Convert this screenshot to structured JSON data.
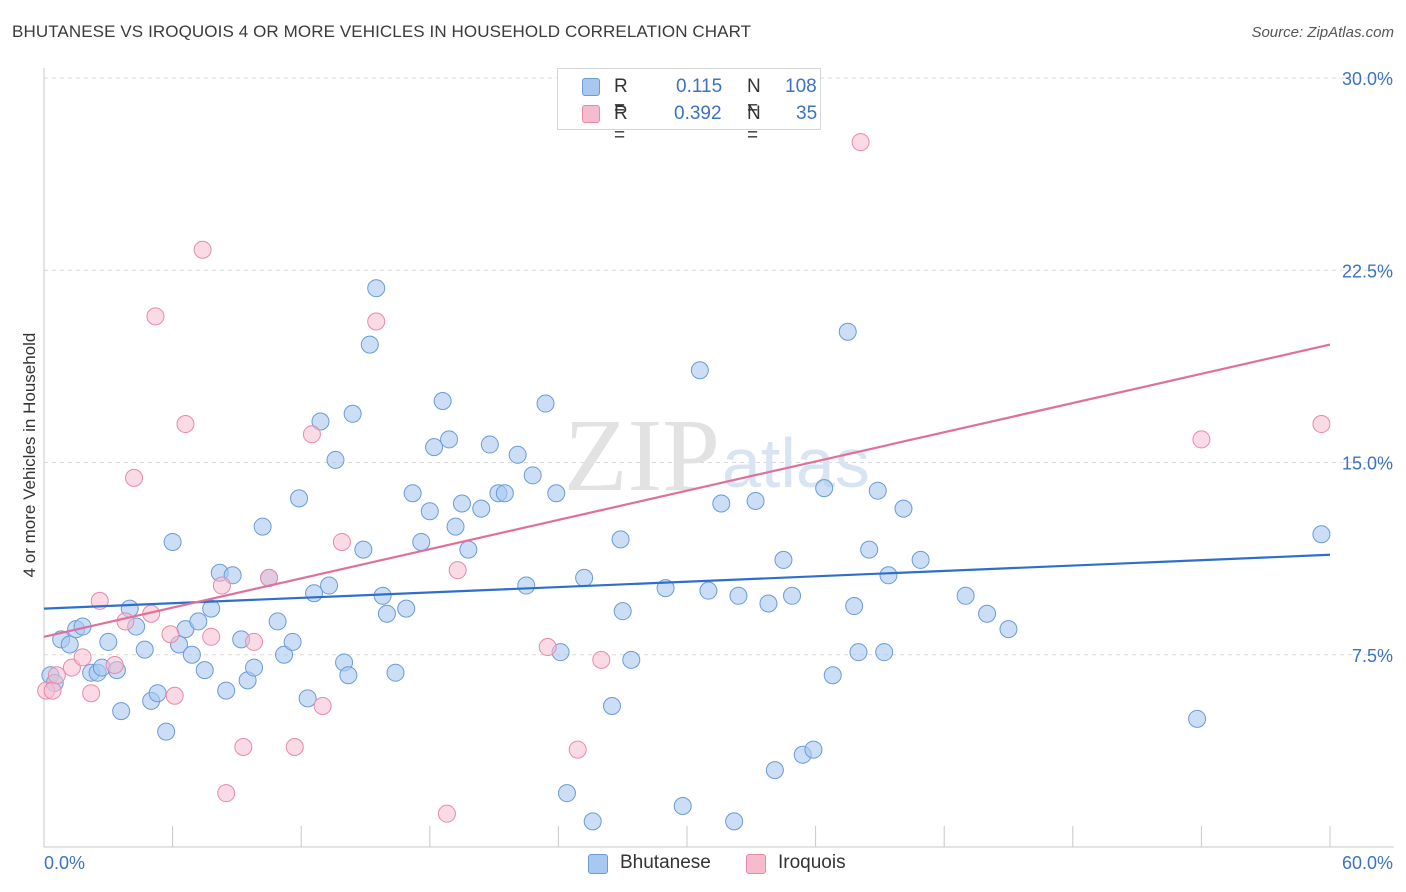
{
  "header": {
    "title": "BHUTANESE VS IROQUOIS 4 OR MORE VEHICLES IN HOUSEHOLD CORRELATION CHART",
    "source": "Source: ZipAtlas.com"
  },
  "watermark": {
    "zip": "ZIP",
    "atlas": "atlas"
  },
  "legend": {
    "r_label": "R =",
    "n_label": "N =",
    "rows": [
      {
        "series": "Bhutanese",
        "r": "0.115",
        "n": "108"
      },
      {
        "series": "Iroquois",
        "r": "0.392",
        "n": "35"
      }
    ]
  },
  "colors": {
    "blue_fill": "#a8c8f0",
    "blue_stroke": "#6a9bd8",
    "blue_line": "#2f6fcc",
    "pink_fill": "#f6bccd",
    "pink_stroke": "#e88aa8",
    "pink_line": "#e0709a",
    "tick_label": "#3b72c4",
    "grid": "#d8d8d8"
  },
  "chart_data": {
    "type": "scatter",
    "title": "BHUTANESE VS IROQUOIS 4 OR MORE VEHICLES IN HOUSEHOLD CORRELATION CHART",
    "xlabel": "",
    "ylabel": "4 or more Vehicles in Household",
    "xlim": [
      0,
      60
    ],
    "ylim": [
      0,
      30
    ],
    "x_tick_labels": [
      "0.0%",
      "60.0%"
    ],
    "y_ticks": [
      7.5,
      15.0,
      22.5,
      30.0
    ],
    "y_tick_labels": [
      "7.5%",
      "15.0%",
      "22.5%",
      "30.0%"
    ],
    "grid": "horizontal dashed",
    "legend_position": "top-center and bottom-center",
    "series": [
      {
        "name": "Bhutanese",
        "color": "#a8c8f0",
        "trend": {
          "x": [
            0,
            60
          ],
          "y": [
            9.3,
            11.4
          ]
        },
        "points": [
          [
            0.3,
            6.7
          ],
          [
            0.5,
            6.4
          ],
          [
            0.8,
            8.1
          ],
          [
            1.2,
            7.9
          ],
          [
            1.5,
            8.5
          ],
          [
            1.8,
            8.6
          ],
          [
            2.2,
            6.8
          ],
          [
            2.5,
            6.8
          ],
          [
            2.7,
            7.0
          ],
          [
            3.0,
            8.0
          ],
          [
            3.4,
            6.9
          ],
          [
            3.6,
            5.3
          ],
          [
            4.0,
            9.3
          ],
          [
            4.3,
            8.6
          ],
          [
            4.7,
            7.7
          ],
          [
            5.0,
            5.7
          ],
          [
            5.3,
            6.0
          ],
          [
            5.7,
            4.5
          ],
          [
            6.0,
            11.9
          ],
          [
            6.3,
            7.9
          ],
          [
            6.6,
            8.5
          ],
          [
            6.9,
            7.5
          ],
          [
            7.2,
            8.8
          ],
          [
            7.5,
            6.9
          ],
          [
            7.8,
            9.3
          ],
          [
            8.2,
            10.7
          ],
          [
            8.5,
            6.1
          ],
          [
            8.8,
            10.6
          ],
          [
            9.2,
            8.1
          ],
          [
            9.5,
            6.5
          ],
          [
            9.8,
            7.0
          ],
          [
            10.2,
            12.5
          ],
          [
            10.5,
            10.5
          ],
          [
            10.9,
            8.8
          ],
          [
            11.2,
            7.5
          ],
          [
            11.6,
            8.0
          ],
          [
            11.9,
            13.6
          ],
          [
            12.3,
            5.8
          ],
          [
            12.6,
            9.9
          ],
          [
            12.9,
            16.6
          ],
          [
            13.3,
            10.2
          ],
          [
            13.6,
            15.1
          ],
          [
            14.0,
            7.2
          ],
          [
            14.2,
            6.7
          ],
          [
            14.4,
            16.9
          ],
          [
            14.9,
            11.6
          ],
          [
            15.2,
            19.6
          ],
          [
            15.5,
            21.8
          ],
          [
            15.8,
            9.8
          ],
          [
            16.0,
            9.1
          ],
          [
            16.4,
            6.8
          ],
          [
            16.9,
            9.3
          ],
          [
            17.2,
            13.8
          ],
          [
            17.6,
            11.9
          ],
          [
            18.0,
            13.1
          ],
          [
            18.2,
            15.6
          ],
          [
            18.6,
            17.4
          ],
          [
            18.9,
            15.9
          ],
          [
            19.2,
            12.5
          ],
          [
            19.5,
            13.4
          ],
          [
            19.8,
            11.6
          ],
          [
            20.4,
            13.2
          ],
          [
            20.8,
            15.7
          ],
          [
            21.2,
            13.8
          ],
          [
            21.5,
            13.8
          ],
          [
            22.1,
            15.3
          ],
          [
            22.5,
            10.2
          ],
          [
            22.8,
            14.5
          ],
          [
            23.4,
            17.3
          ],
          [
            23.9,
            13.8
          ],
          [
            24.1,
            7.6
          ],
          [
            24.4,
            2.1
          ],
          [
            25.2,
            10.5
          ],
          [
            25.6,
            1.0
          ],
          [
            26.5,
            5.5
          ],
          [
            26.9,
            12.0
          ],
          [
            27.0,
            9.2
          ],
          [
            27.4,
            7.3
          ],
          [
            29.0,
            10.1
          ],
          [
            29.8,
            1.6
          ],
          [
            30.6,
            18.6
          ],
          [
            31.0,
            10.0
          ],
          [
            31.6,
            13.4
          ],
          [
            32.4,
            9.8
          ],
          [
            32.2,
            1.0
          ],
          [
            33.2,
            13.5
          ],
          [
            33.8,
            9.5
          ],
          [
            34.1,
            3.0
          ],
          [
            34.5,
            11.2
          ],
          [
            34.9,
            9.8
          ],
          [
            35.4,
            3.6
          ],
          [
            35.9,
            3.8
          ],
          [
            36.4,
            14.0
          ],
          [
            36.8,
            6.7
          ],
          [
            37.5,
            20.1
          ],
          [
            37.8,
            9.4
          ],
          [
            38.0,
            7.6
          ],
          [
            38.5,
            11.6
          ],
          [
            38.9,
            13.9
          ],
          [
            39.2,
            7.6
          ],
          [
            39.4,
            10.6
          ],
          [
            40.1,
            13.2
          ],
          [
            40.9,
            11.2
          ],
          [
            43.0,
            9.8
          ],
          [
            44.0,
            9.1
          ],
          [
            45.0,
            8.5
          ],
          [
            53.8,
            5.0
          ],
          [
            59.6,
            12.2
          ]
        ]
      },
      {
        "name": "Iroquois",
        "color": "#f6bccd",
        "trend": {
          "x": [
            0,
            60
          ],
          "y": [
            8.2,
            19.6
          ]
        },
        "points": [
          [
            0.1,
            6.1
          ],
          [
            0.4,
            6.1
          ],
          [
            0.6,
            6.7
          ],
          [
            1.3,
            7.0
          ],
          [
            1.8,
            7.4
          ],
          [
            2.2,
            6.0
          ],
          [
            2.6,
            9.6
          ],
          [
            3.3,
            7.1
          ],
          [
            3.8,
            8.8
          ],
          [
            4.2,
            14.4
          ],
          [
            5.0,
            9.1
          ],
          [
            5.2,
            20.7
          ],
          [
            5.9,
            8.3
          ],
          [
            6.1,
            5.9
          ],
          [
            6.6,
            16.5
          ],
          [
            7.4,
            23.3
          ],
          [
            7.8,
            8.2
          ],
          [
            8.3,
            10.2
          ],
          [
            8.5,
            2.1
          ],
          [
            9.3,
            3.9
          ],
          [
            9.8,
            8.0
          ],
          [
            10.5,
            10.5
          ],
          [
            11.7,
            3.9
          ],
          [
            12.5,
            16.1
          ],
          [
            13.0,
            5.5
          ],
          [
            13.9,
            11.9
          ],
          [
            15.5,
            20.5
          ],
          [
            18.8,
            1.3
          ],
          [
            19.3,
            10.8
          ],
          [
            23.5,
            7.8
          ],
          [
            24.9,
            3.8
          ],
          [
            26.0,
            7.3
          ],
          [
            38.1,
            27.5
          ],
          [
            54.0,
            15.9
          ],
          [
            59.6,
            16.5
          ]
        ]
      }
    ]
  }
}
